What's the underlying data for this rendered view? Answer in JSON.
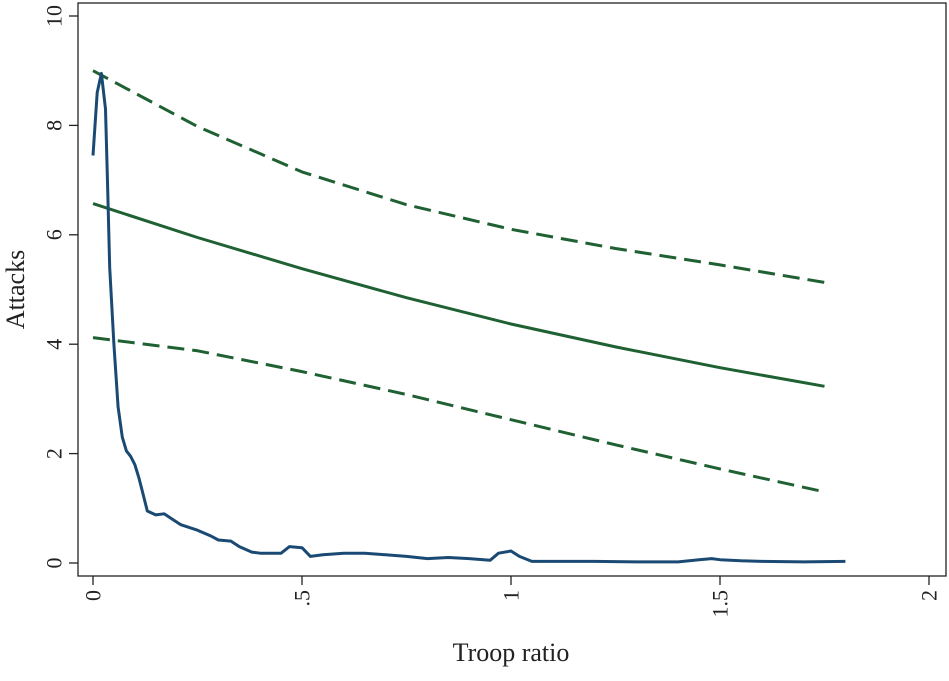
{
  "chart_data": {
    "type": "line",
    "xlabel": "Troop ratio",
    "ylabel": "Attacks",
    "xlim": [
      0,
      2
    ],
    "ylim": [
      0,
      10
    ],
    "x_ticks": [
      0,
      0.5,
      1,
      1.5,
      2
    ],
    "x_tick_labels": [
      "0",
      ".5",
      "1",
      "1.5",
      "2"
    ],
    "y_ticks": [
      0,
      2,
      4,
      6,
      8,
      10
    ],
    "y_tick_labels": [
      "0",
      "2",
      "4",
      "6",
      "8",
      "10"
    ],
    "grid": false,
    "series": [
      {
        "style": "solid",
        "color": "#1f6132",
        "x": [
          0,
          0.25,
          0.5,
          0.75,
          1.0,
          1.25,
          1.5,
          1.75
        ],
        "values": [
          6.57,
          5.95,
          5.38,
          4.85,
          4.37,
          3.95,
          3.57,
          3.23
        ]
      },
      {
        "style": "dashed",
        "color": "#1f6132",
        "x": [
          0,
          0.25,
          0.5,
          0.75,
          1.0,
          1.25,
          1.5,
          1.75
        ],
        "values": [
          9.0,
          7.98,
          7.15,
          6.55,
          6.1,
          5.75,
          5.45,
          5.13
        ]
      },
      {
        "style": "dashed",
        "color": "#1f6132",
        "x": [
          0,
          0.25,
          0.5,
          0.75,
          1.0,
          1.25,
          1.5,
          1.75
        ],
        "values": [
          4.12,
          3.88,
          3.5,
          3.08,
          2.62,
          2.16,
          1.72,
          1.3
        ]
      },
      {
        "style": "solid",
        "color": "#1a4a73",
        "x": [
          0,
          0.01,
          0.02,
          0.03,
          0.035,
          0.04,
          0.05,
          0.06,
          0.07,
          0.08,
          0.09,
          0.1,
          0.11,
          0.12,
          0.13,
          0.15,
          0.17,
          0.19,
          0.21,
          0.23,
          0.25,
          0.28,
          0.3,
          0.33,
          0.35,
          0.38,
          0.4,
          0.45,
          0.47,
          0.5,
          0.52,
          0.55,
          0.6,
          0.65,
          0.7,
          0.75,
          0.8,
          0.85,
          0.9,
          0.95,
          0.97,
          1.0,
          1.02,
          1.05,
          1.1,
          1.2,
          1.3,
          1.4,
          1.45,
          1.48,
          1.5,
          1.55,
          1.6,
          1.7,
          1.8
        ],
        "values": [
          7.45,
          8.6,
          8.95,
          8.3,
          6.9,
          5.4,
          4.0,
          2.85,
          2.3,
          2.05,
          1.95,
          1.8,
          1.55,
          1.25,
          0.95,
          0.88,
          0.9,
          0.8,
          0.7,
          0.65,
          0.6,
          0.5,
          0.42,
          0.4,
          0.3,
          0.2,
          0.18,
          0.18,
          0.3,
          0.28,
          0.12,
          0.15,
          0.18,
          0.18,
          0.15,
          0.12,
          0.08,
          0.1,
          0.08,
          0.05,
          0.18,
          0.22,
          0.12,
          0.03,
          0.03,
          0.03,
          0.02,
          0.02,
          0.06,
          0.08,
          0.06,
          0.04,
          0.03,
          0.02,
          0.03
        ]
      }
    ]
  }
}
